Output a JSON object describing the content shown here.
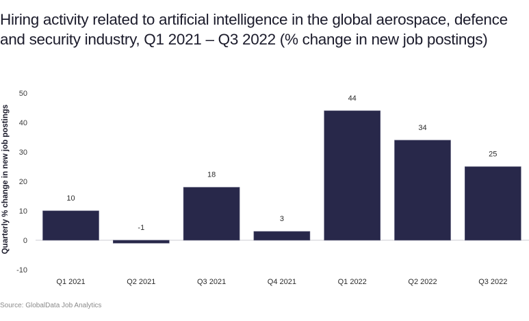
{
  "chart_data": {
    "type": "bar",
    "title": "Hiring activity related to artificial intelligence in the global aerospace, defence and security industry, Q1 2021 – Q3 2022 (% change in new job postings)",
    "xlabel": "",
    "ylabel": "Quarterly % change in new job postings",
    "categories": [
      "Q1 2021",
      "Q2 2021",
      "Q3 2021",
      "Q4 2021",
      "Q1 2022",
      "Q2 2022",
      "Q3 2022"
    ],
    "values": [
      10,
      -1,
      18,
      3,
      44,
      34,
      25
    ],
    "data_labels": [
      "10",
      "-1",
      "18",
      "3",
      "44",
      "34",
      "25"
    ],
    "ylim": [
      -10,
      50
    ],
    "yticks": [
      50,
      40,
      30,
      20,
      10,
      0,
      -10
    ],
    "grid": false,
    "legend": "none",
    "bar_color": "#28284a",
    "source": "Source: GlobalData Job Analytics"
  }
}
